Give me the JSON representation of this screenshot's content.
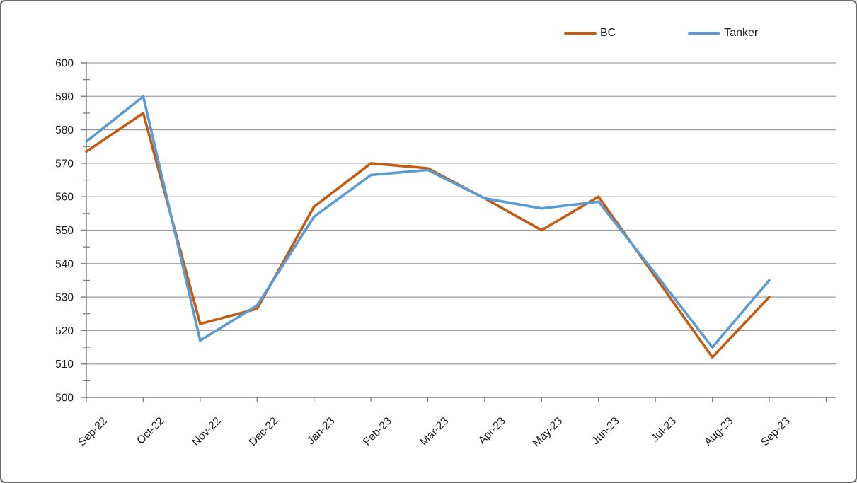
{
  "window": {
    "background": "#ffffff",
    "border_color": "#6b6b6b"
  },
  "chart_data": {
    "type": "line",
    "title": "",
    "xlabel": "",
    "ylabel": "",
    "categories": [
      "Sep-22",
      "Oct-22",
      "Nov-22",
      "Dec-22",
      "Jan-23",
      "Feb-23",
      "Mar-23",
      "Apr-23",
      "May-23",
      "Jun-23",
      "Jul-23",
      "Aug-23",
      "Sep-23"
    ],
    "series": [
      {
        "name": "BC",
        "color": "#c55a11",
        "values": [
          573.5,
          585,
          522,
          526.5,
          557,
          570,
          568.5,
          559.5,
          550,
          560,
          536,
          512,
          530
        ]
      },
      {
        "name": "Tanker",
        "color": "#5b9bd5",
        "values": [
          576.5,
          590,
          517,
          527.5,
          554,
          566.5,
          568,
          559.5,
          556.5,
          558.5,
          537,
          515,
          535
        ]
      }
    ],
    "ylim": [
      500,
      600
    ],
    "ytick_step": 10,
    "y_minor_step": 5,
    "ytick_labels": [
      "500",
      "510",
      "520",
      "530",
      "540",
      "550",
      "560",
      "570",
      "580",
      "590",
      "600"
    ],
    "grid": "horizontal",
    "legend_position": "top-right",
    "gridline_color": "#9e9e9e",
    "axis_color": "#7f7f7f",
    "tick_color": "#7f7f7f",
    "label_color": "#1a1a1a",
    "line_width": 3.6,
    "x_label_rotation": -45
  }
}
